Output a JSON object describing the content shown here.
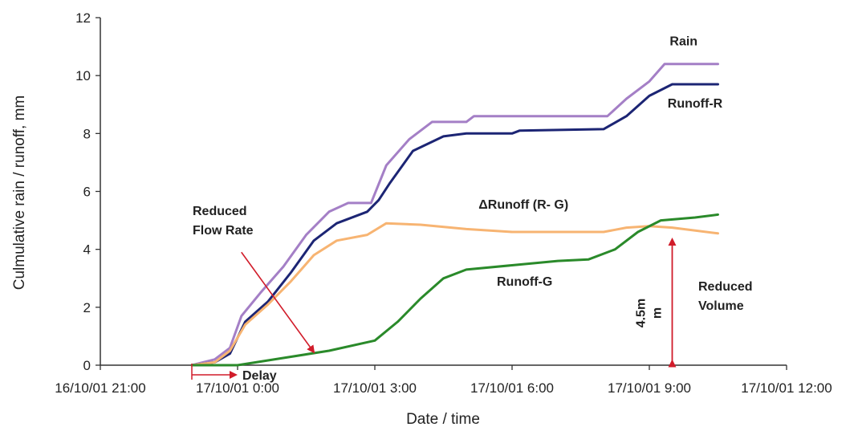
{
  "chart_data": {
    "type": "line",
    "xlabel": "Date / time",
    "ylabel": "Culmulative rain / runoff, mm",
    "ylim": [
      0,
      12
    ],
    "yticks": [
      0,
      2,
      4,
      6,
      8,
      10,
      12
    ],
    "xlim": [
      "2001-10-16 21:00",
      "2001-10-17 12:00"
    ],
    "xticks": [
      "16/10/01 21:00",
      "17/10/01 0:00",
      "17/10/01 3:00",
      "17/10/01 6:00",
      "17/10/01 9:00",
      "17/10/01 12:00"
    ],
    "grid": false,
    "series": [
      {
        "name": "Rain",
        "color": "#a47fc6",
        "points": [
          [
            "2001-10-16 23:00",
            0.0
          ],
          [
            "2001-10-16 23:30",
            0.2
          ],
          [
            "2001-10-16 23:50",
            0.6
          ],
          [
            "2001-10-17 00:05",
            1.7
          ],
          [
            "2001-10-17 00:30",
            2.5
          ],
          [
            "2001-10-17 01:00",
            3.4
          ],
          [
            "2001-10-17 01:30",
            4.5
          ],
          [
            "2001-10-17 02:00",
            5.3
          ],
          [
            "2001-10-17 02:25",
            5.6
          ],
          [
            "2001-10-17 02:55",
            5.6
          ],
          [
            "2001-10-17 03:15",
            6.9
          ],
          [
            "2001-10-17 03:45",
            7.8
          ],
          [
            "2001-10-17 04:15",
            8.4
          ],
          [
            "2001-10-17 05:00",
            8.4
          ],
          [
            "2001-10-17 05:10",
            8.6
          ],
          [
            "2001-10-17 07:00",
            8.6
          ],
          [
            "2001-10-17 08:05",
            8.6
          ],
          [
            "2001-10-17 08:30",
            9.2
          ],
          [
            "2001-10-17 09:00",
            9.8
          ],
          [
            "2001-10-17 09:20",
            10.4
          ],
          [
            "2001-10-17 10:30",
            10.4
          ]
        ]
      },
      {
        "name": "Runoff-R",
        "color": "#1c2574",
        "points": [
          [
            "2001-10-16 23:00",
            0.0
          ],
          [
            "2001-10-16 23:30",
            0.1
          ],
          [
            "2001-10-16 23:50",
            0.4
          ],
          [
            "2001-10-17 00:10",
            1.5
          ],
          [
            "2001-10-17 00:40",
            2.2
          ],
          [
            "2001-10-17 01:10",
            3.2
          ],
          [
            "2001-10-17 01:40",
            4.3
          ],
          [
            "2001-10-17 02:10",
            4.9
          ],
          [
            "2001-10-17 02:50",
            5.3
          ],
          [
            "2001-10-17 03:05",
            5.7
          ],
          [
            "2001-10-17 03:20",
            6.3
          ],
          [
            "2001-10-17 03:50",
            7.4
          ],
          [
            "2001-10-17 04:30",
            7.9
          ],
          [
            "2001-10-17 05:00",
            8.0
          ],
          [
            "2001-10-17 06:00",
            8.0
          ],
          [
            "2001-10-17 06:10",
            8.1
          ],
          [
            "2001-10-17 08:00",
            8.15
          ],
          [
            "2001-10-17 08:30",
            8.6
          ],
          [
            "2001-10-17 09:00",
            9.3
          ],
          [
            "2001-10-17 09:30",
            9.7
          ],
          [
            "2001-10-17 10:30",
            9.7
          ]
        ]
      },
      {
        "name": "ΔRunoff (R- G)",
        "color": "#f7b472",
        "points": [
          [
            "2001-10-16 23:00",
            0.0
          ],
          [
            "2001-10-16 23:30",
            0.1
          ],
          [
            "2001-10-16 23:50",
            0.5
          ],
          [
            "2001-10-17 00:10",
            1.4
          ],
          [
            "2001-10-17 00:40",
            2.1
          ],
          [
            "2001-10-17 01:10",
            2.9
          ],
          [
            "2001-10-17 01:40",
            3.8
          ],
          [
            "2001-10-17 02:10",
            4.3
          ],
          [
            "2001-10-17 02:50",
            4.5
          ],
          [
            "2001-10-17 03:15",
            4.9
          ],
          [
            "2001-10-17 04:00",
            4.85
          ],
          [
            "2001-10-17 05:00",
            4.7
          ],
          [
            "2001-10-17 06:00",
            4.6
          ],
          [
            "2001-10-17 07:00",
            4.6
          ],
          [
            "2001-10-17 08:00",
            4.6
          ],
          [
            "2001-10-17 08:30",
            4.75
          ],
          [
            "2001-10-17 09:00",
            4.8
          ],
          [
            "2001-10-17 09:30",
            4.75
          ],
          [
            "2001-10-17 10:30",
            4.55
          ]
        ]
      },
      {
        "name": "Runoff-G",
        "color": "#2a8a2a",
        "points": [
          [
            "2001-10-16 23:00",
            0.0
          ],
          [
            "2001-10-17 00:00",
            0.0
          ],
          [
            "2001-10-17 01:00",
            0.25
          ],
          [
            "2001-10-17 02:00",
            0.5
          ],
          [
            "2001-10-17 03:00",
            0.85
          ],
          [
            "2001-10-17 03:30",
            1.5
          ],
          [
            "2001-10-17 04:00",
            2.3
          ],
          [
            "2001-10-17 04:30",
            3.0
          ],
          [
            "2001-10-17 05:00",
            3.3
          ],
          [
            "2001-10-17 06:00",
            3.45
          ],
          [
            "2001-10-17 07:00",
            3.6
          ],
          [
            "2001-10-17 07:40",
            3.65
          ],
          [
            "2001-10-17 08:15",
            4.0
          ],
          [
            "2001-10-17 08:45",
            4.6
          ],
          [
            "2001-10-17 09:15",
            5.0
          ],
          [
            "2001-10-17 10:00",
            5.1
          ],
          [
            "2001-10-17 10:30",
            5.2
          ]
        ]
      }
    ],
    "labels": [
      {
        "text": "Rain",
        "series": 0
      },
      {
        "text": "Runoff-R",
        "series": 1
      },
      {
        "text": "ΔRunoff (R- G)",
        "series": 2
      },
      {
        "text": "Runoff-G",
        "series": 3
      }
    ],
    "annotations": {
      "reduced_flow_rate": "Reduced\nFlow Rate",
      "reduced_volume": "Reduced\nVolume",
      "volume_value": "4.5m\nm",
      "delay": "Delay",
      "arrow_color": "#d11c2a"
    }
  }
}
